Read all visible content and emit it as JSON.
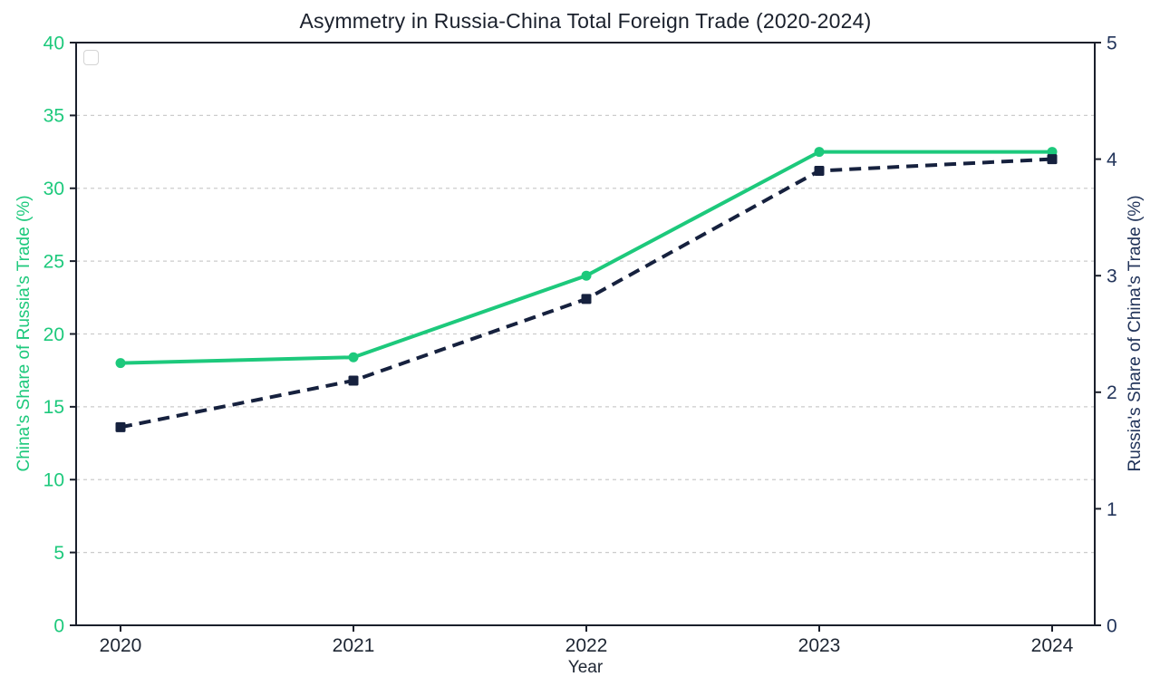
{
  "colors": {
    "green": "#1dc97c",
    "navy": "#16213e",
    "title_text": "#1a202c",
    "right_axis_text": "#22345a",
    "x_tick_text": "#1e2633",
    "spine": "#1a1f2b",
    "grid": "#cccccc",
    "legend_border": "#d4d4d4",
    "background": "#ffffff"
  },
  "chart_data": {
    "type": "line",
    "title": "Asymmetry in Russia-China Total Foreign Trade (2020-2024)",
    "xlabel": "Year",
    "x": [
      2020,
      2021,
      2022,
      2023,
      2024
    ],
    "series": [
      {
        "name": "China's Share of Russia's Trade (%)",
        "axis": "left",
        "values": [
          18.0,
          18.4,
          24.0,
          32.5,
          32.5
        ],
        "color": "#1dc97c",
        "line_style": "solid",
        "marker": "circle"
      },
      {
        "name": "Russia's Share of China's Trade (%)",
        "axis": "right",
        "values": [
          1.7,
          2.1,
          2.8,
          3.9,
          4.0
        ],
        "color": "#16213e",
        "line_style": "dashed",
        "marker": "square"
      }
    ],
    "left_axis": {
      "label": "China's Share of Russia's Trade (%)",
      "min": 0,
      "max": 40,
      "ticks": [
        0,
        5,
        10,
        15,
        20,
        25,
        30,
        35,
        40
      ],
      "tick_color": "#1dc97c"
    },
    "right_axis": {
      "label": "Russia's Share of China's Trade (%)",
      "min": 0,
      "max": 5,
      "ticks": [
        0,
        1,
        2,
        3,
        4,
        5
      ],
      "tick_color": "#22345a"
    },
    "grid": {
      "horizontal": true,
      "style": "dashed",
      "at": "left-axis ticks"
    },
    "legend": {
      "visible": true,
      "empty": true,
      "position": "upper left"
    }
  }
}
